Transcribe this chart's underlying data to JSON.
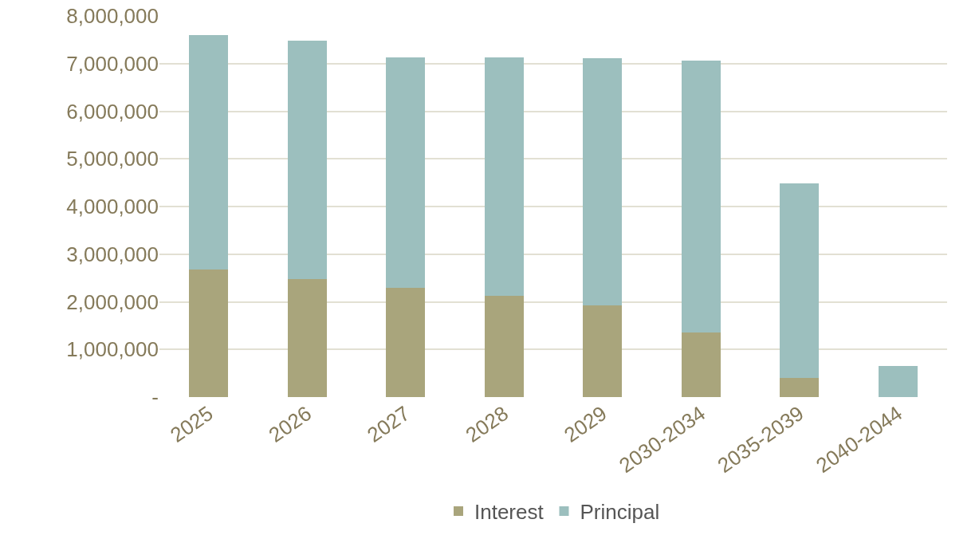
{
  "chart_data": {
    "type": "bar",
    "stacked": true,
    "categories": [
      "2025",
      "2026",
      "2027",
      "2028",
      "2029",
      "2030-2034",
      "2035-2039",
      "2040-2044"
    ],
    "series": [
      {
        "name": "Interest",
        "color": "#a9a57c",
        "values": [
          2670000,
          2480000,
          2290000,
          2120000,
          1920000,
          1350000,
          400000,
          0
        ]
      },
      {
        "name": "Principal",
        "color": "#9cbfbe",
        "values": [
          4930000,
          5000000,
          4840000,
          5010000,
          5200000,
          5710000,
          4080000,
          650000
        ]
      }
    ],
    "ylim": [
      0,
      8000000
    ],
    "yticks": [
      {
        "value": 0,
        "label": "-"
      },
      {
        "value": 1000000,
        "label": "1,000,000"
      },
      {
        "value": 2000000,
        "label": "2,000,000"
      },
      {
        "value": 3000000,
        "label": "3,000,000"
      },
      {
        "value": 4000000,
        "label": "4,000,000"
      },
      {
        "value": 5000000,
        "label": "5,000,000"
      },
      {
        "value": 6000000,
        "label": "6,000,000"
      },
      {
        "value": 7000000,
        "label": "7,000,000"
      },
      {
        "value": 8000000,
        "label": "8,000,000"
      }
    ],
    "grid": "y",
    "legend": "bottom"
  }
}
